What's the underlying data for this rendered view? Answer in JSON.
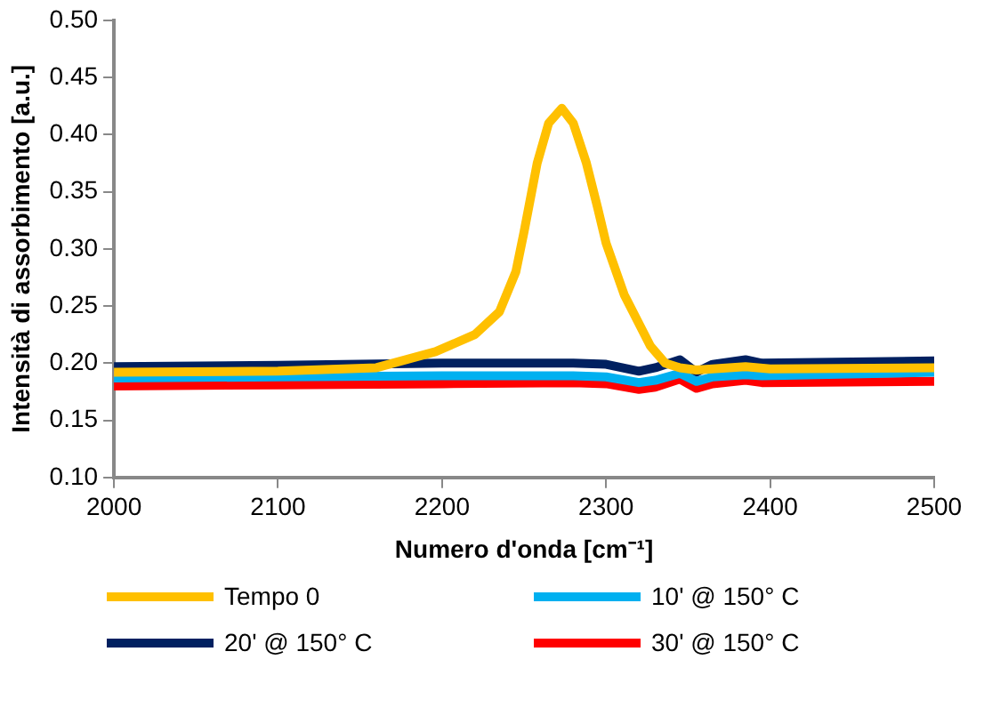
{
  "chart_data": {
    "type": "line",
    "xlabel": "Numero d'onda [cm⁻¹]",
    "ylabel": "Intensità di assorbimento [a.u.]",
    "xlim": [
      2000,
      2500
    ],
    "xticks": [
      2000,
      2100,
      2200,
      2300,
      2400,
      2500
    ],
    "ylim": [
      0.1,
      0.5
    ],
    "yticks": [
      {
        "value": 0.1,
        "label": "0.10"
      },
      {
        "value": 0.15,
        "label": "0.15"
      },
      {
        "value": 0.2,
        "label": "0.20"
      },
      {
        "value": 0.25,
        "label": "0.25"
      },
      {
        "value": 0.3,
        "label": "0.30"
      },
      {
        "value": 0.35,
        "label": "0.35"
      },
      {
        "value": 0.4,
        "label": "0.40"
      },
      {
        "value": 0.45,
        "label": "0.45"
      },
      {
        "value": 0.5,
        "label": "0.50"
      }
    ],
    "grid": false,
    "legend": "bottom",
    "marker": "none",
    "line_style": "solid",
    "series": [
      {
        "name": "Tempo 0",
        "color": "#ffc000",
        "x": [
          2000,
          2100,
          2160,
          2196,
          2220,
          2235,
          2245,
          2250,
          2258,
          2265,
          2273,
          2280,
          2288,
          2295,
          2300,
          2311,
          2327,
          2336,
          2345,
          2355,
          2385,
          2400,
          2500
        ],
        "values": [
          0.192,
          0.193,
          0.196,
          0.21,
          0.225,
          0.245,
          0.28,
          0.315,
          0.375,
          0.41,
          0.423,
          0.41,
          0.375,
          0.335,
          0.305,
          0.26,
          0.215,
          0.2,
          0.196,
          0.194,
          0.197,
          0.195,
          0.196
        ]
      },
      {
        "name": "10' @ 150° C",
        "color": "#00b0f0",
        "x": [
          2000,
          2100,
          2200,
          2280,
          2300,
          2320,
          2330,
          2345,
          2355,
          2365,
          2385,
          2395,
          2500
        ],
        "values": [
          0.187,
          0.188,
          0.189,
          0.189,
          0.188,
          0.183,
          0.185,
          0.191,
          0.184,
          0.188,
          0.19,
          0.189,
          0.192
        ]
      },
      {
        "name": "20' @ 150° C",
        "color": "#002060",
        "x": [
          2000,
          2100,
          2200,
          2280,
          2300,
          2320,
          2330,
          2345,
          2355,
          2365,
          2385,
          2395,
          2500
        ],
        "values": [
          0.197,
          0.198,
          0.2,
          0.2,
          0.199,
          0.193,
          0.196,
          0.203,
          0.192,
          0.199,
          0.203,
          0.2,
          0.202
        ]
      },
      {
        "name": "30' @ 150° C",
        "color": "#ff0000",
        "x": [
          2000,
          2100,
          2200,
          2280,
          2300,
          2320,
          2330,
          2345,
          2355,
          2365,
          2385,
          2395,
          2500
        ],
        "values": [
          0.18,
          0.181,
          0.182,
          0.183,
          0.182,
          0.177,
          0.179,
          0.186,
          0.178,
          0.182,
          0.185,
          0.183,
          0.184
        ]
      }
    ]
  }
}
